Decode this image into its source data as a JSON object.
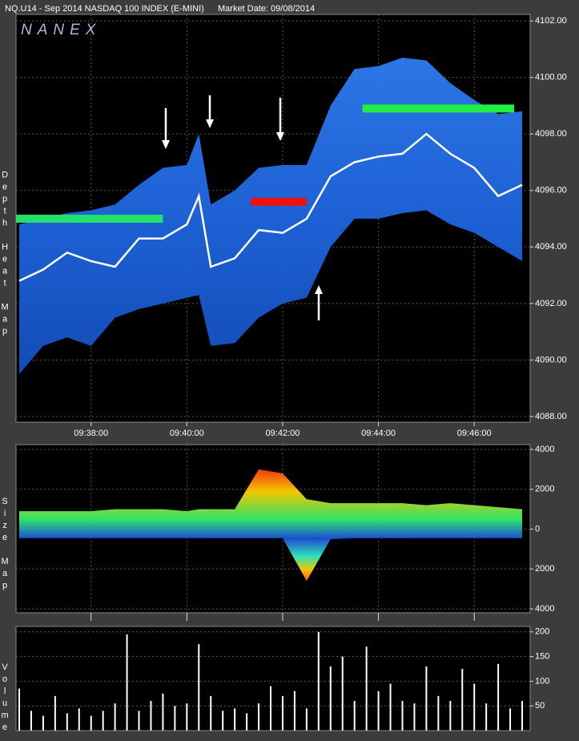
{
  "header": {
    "symbol": "NQ.U14 - Sep 2014 NASDAQ 100 INDEX (E-MINI)",
    "market_date": "Market Date: 09/08/2014",
    "logo": "NANEX"
  },
  "chart_data": [
    {
      "type": "heatmap",
      "ylabel": "Depth Heat Map",
      "x": [
        "09:36:30",
        "09:37:00",
        "09:37:30",
        "09:38:00",
        "09:38:30",
        "09:39:00",
        "09:39:30",
        "09:40:00",
        "09:40:15",
        "09:40:30",
        "09:41:00",
        "09:41:30",
        "09:42:00",
        "09:42:30",
        "09:43:00",
        "09:43:30",
        "09:44:00",
        "09:44:30",
        "09:45:00",
        "09:45:30",
        "09:46:00",
        "09:46:30",
        "09:47:00"
      ],
      "values": [
        4092.8,
        4093.2,
        4093.8,
        4093.5,
        4093.3,
        4094.3,
        4094.3,
        4094.8,
        4095.8,
        4093.3,
        4093.6,
        4094.6,
        4094.5,
        4095.0,
        4096.5,
        4097.0,
        4097.2,
        4097.3,
        4098.0,
        4097.3,
        4096.8,
        4095.8,
        4096.2
      ],
      "depth_top": [
        4094.8,
        4095.0,
        4095.2,
        4095.3,
        4095.5,
        4096.2,
        4096.8,
        4096.9,
        4098.0,
        4095.5,
        4096.0,
        4096.8,
        4096.9,
        4096.9,
        4099.0,
        4100.3,
        4100.4,
        4100.7,
        4100.6,
        4099.8,
        4099.2,
        4098.7,
        4098.8
      ],
      "depth_bottom": [
        4089.5,
        4090.5,
        4090.8,
        4090.5,
        4091.5,
        4091.8,
        4092.0,
        4092.2,
        4092.3,
        4090.5,
        4090.6,
        4091.5,
        4092.0,
        4092.2,
        4094.0,
        4095.0,
        4095.0,
        4095.2,
        4095.3,
        4094.8,
        4094.5,
        4094.0,
        4093.5
      ],
      "levels": [
        {
          "price": 4095.0,
          "start": "09:36:26",
          "end": "09:39:30",
          "color": "#22e06a"
        },
        {
          "price": 4098.9,
          "start": "09:43:40",
          "end": "09:46:50",
          "color": "#22ee44"
        },
        {
          "price": 4095.6,
          "start": "09:41:20",
          "end": "09:42:30",
          "color": "#ee1111"
        }
      ],
      "color": "#ffffff",
      "depth_color": "#1f66e0",
      "xlim": [
        "09:36:26",
        "09:47:10"
      ],
      "xticks": [
        "09:38:00",
        "09:40:00",
        "09:42:00",
        "09:44:00",
        "09:46:00"
      ],
      "ylim": [
        4087.8,
        4102.23
      ],
      "yticks": [
        {
          "value": 4102,
          "label": "4102.00"
        },
        {
          "value": 4100,
          "label": "4100.00"
        },
        {
          "value": 4098,
          "label": "4098.00"
        },
        {
          "value": 4096,
          "label": "4096.00"
        },
        {
          "value": 4094,
          "label": "4094.00"
        },
        {
          "value": 4092,
          "label": "4092.00"
        },
        {
          "value": 4090,
          "label": "4090.00"
        },
        {
          "value": 4088,
          "label": "4088.00"
        }
      ],
      "grid": true
    },
    {
      "type": "area",
      "ylabel": "Size Map",
      "x": [
        "09:36:30",
        "09:37:00",
        "09:37:30",
        "09:38:00",
        "09:38:30",
        "09:39:00",
        "09:39:30",
        "09:40:00",
        "09:40:15",
        "09:40:30",
        "09:41:00",
        "09:41:30",
        "09:42:00",
        "09:42:30",
        "09:43:00",
        "09:43:30",
        "09:44:00",
        "09:44:30",
        "09:45:00",
        "09:45:30",
        "09:46:00",
        "09:46:30",
        "09:47:00"
      ],
      "upper": [
        900,
        900,
        900,
        900,
        1000,
        1000,
        1000,
        900,
        1000,
        1000,
        1000,
        3000,
        2800,
        1500,
        1300,
        1300,
        1300,
        1300,
        1200,
        1300,
        1200,
        1100,
        1000
      ],
      "lower": [
        -450,
        -450,
        -450,
        -450,
        -450,
        -450,
        -450,
        -450,
        -450,
        -450,
        -450,
        -450,
        -450,
        -2600,
        -500,
        -450,
        -450,
        -450,
        -450,
        -450,
        -450,
        -450,
        -450
      ],
      "xlim": [
        "09:36:26",
        "09:47:10"
      ],
      "xticks": [
        "09:38:00",
        "09:40:00",
        "09:42:00",
        "09:44:00",
        "09:46:00"
      ],
      "ylim": [
        -4200,
        4240
      ],
      "yticks": [
        4000,
        2000,
        0,
        {
          "value": -2000,
          "label": "2000"
        },
        {
          "value": -4000,
          "label": "4000"
        }
      ],
      "grid": true
    },
    {
      "type": "bar",
      "ylabel": "Volume",
      "color": "#ffffff",
      "x": [
        "09:36:30",
        "09:36:45",
        "09:37:00",
        "09:37:15",
        "09:37:30",
        "09:37:45",
        "09:38:00",
        "09:38:15",
        "09:38:30",
        "09:38:45",
        "09:39:00",
        "09:39:15",
        "09:39:30",
        "09:39:45",
        "09:40:00",
        "09:40:15",
        "09:40:30",
        "09:40:45",
        "09:41:00",
        "09:41:15",
        "09:41:30",
        "09:41:45",
        "09:42:00",
        "09:42:15",
        "09:42:30",
        "09:42:45",
        "09:43:00",
        "09:43:15",
        "09:43:30",
        "09:43:45",
        "09:44:00",
        "09:44:15",
        "09:44:30",
        "09:44:45",
        "09:45:00",
        "09:45:15",
        "09:45:30",
        "09:45:45",
        "09:46:00",
        "09:46:15",
        "09:46:30",
        "09:46:45",
        "09:47:00"
      ],
      "values": [
        85,
        40,
        30,
        70,
        35,
        45,
        30,
        40,
        55,
        195,
        40,
        60,
        75,
        50,
        55,
        175,
        70,
        40,
        45,
        35,
        55,
        90,
        70,
        80,
        45,
        200,
        130,
        150,
        60,
        170,
        80,
        95,
        60,
        55,
        130,
        70,
        60,
        125,
        95,
        55,
        135,
        45,
        60
      ],
      "xlim": [
        "09:36:26",
        "09:47:10"
      ],
      "ylim": [
        0,
        211
      ],
      "yticks": [
        200,
        150,
        100,
        50
      ],
      "grid": true
    }
  ]
}
